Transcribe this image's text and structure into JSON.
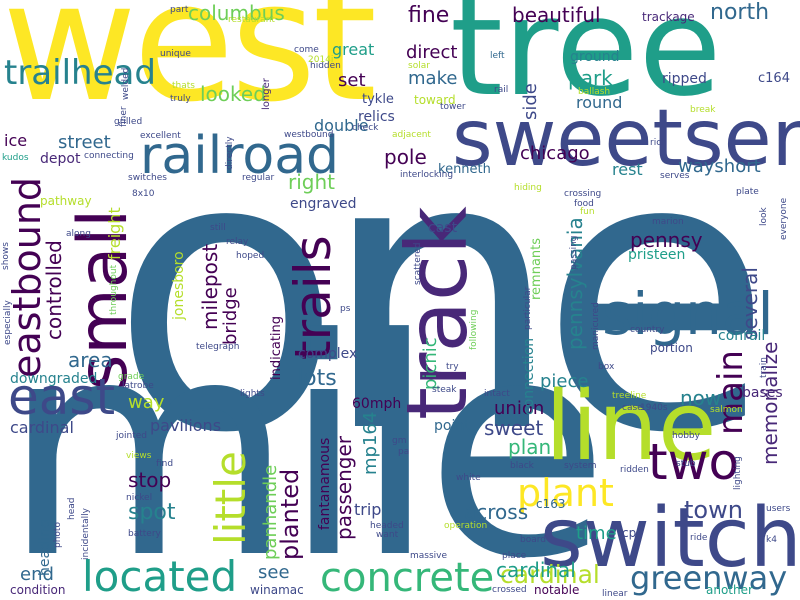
{
  "palette": [
    "#440154",
    "#482878",
    "#3e4989",
    "#31688e",
    "#26828e",
    "#1f9e89",
    "#35b779",
    "#6ece58",
    "#b5de2b",
    "#fde725"
  ],
  "words": [
    {
      "text": "one",
      "color": "#31688e"
    },
    {
      "text": "west",
      "color": "#fde725"
    },
    {
      "text": "mile",
      "color": "#31688e"
    },
    {
      "text": "tree",
      "color": "#1f9e89"
    },
    {
      "text": "line",
      "color": "#b5de2b"
    },
    {
      "text": "track",
      "color": "#482878"
    },
    {
      "text": "switch",
      "color": "#3e4989"
    },
    {
      "text": "sweetser",
      "color": "#3e4989"
    },
    {
      "text": "small",
      "color": "#440154"
    },
    {
      "text": "railroad",
      "color": "#31688e"
    },
    {
      "text": "signal",
      "color": "#31688e"
    },
    {
      "text": "east",
      "color": "#3e4989"
    },
    {
      "text": "eastbound",
      "color": "#440154"
    },
    {
      "text": "located",
      "color": "#1f9e89"
    },
    {
      "text": "concrete",
      "color": "#35b779"
    },
    {
      "text": "trails",
      "color": "#440154"
    },
    {
      "text": "little",
      "color": "#b5de2b"
    },
    {
      "text": "two",
      "color": "#440154"
    },
    {
      "text": "plant",
      "color": "#fde725"
    },
    {
      "text": "main",
      "color": "#440154"
    },
    {
      "text": "greenway",
      "color": "#31688e"
    },
    {
      "text": "cardinal",
      "color": "#b5de2b"
    },
    {
      "text": "town",
      "color": "#3e4989"
    },
    {
      "text": "trailhead",
      "color": "#26828e"
    },
    {
      "text": "columbus",
      "color": "#6ece58"
    },
    {
      "text": "beautiful",
      "color": "#440154"
    },
    {
      "text": "north",
      "color": "#31688e"
    },
    {
      "text": "fine",
      "color": "#440154"
    },
    {
      "text": "double",
      "color": "#31688e"
    },
    {
      "text": "looked",
      "color": "#6ece58"
    },
    {
      "text": "great",
      "color": "#1f9e89"
    },
    {
      "text": "set",
      "color": "#440154"
    },
    {
      "text": "make",
      "color": "#31688e"
    },
    {
      "text": "direct",
      "color": "#440154"
    },
    {
      "text": "side",
      "color": "#3e4989"
    },
    {
      "text": "park",
      "color": "#1f9e89"
    },
    {
      "text": "round",
      "color": "#31688e"
    },
    {
      "text": "ripped",
      "color": "#3e4989"
    },
    {
      "text": "ground",
      "color": "#26828e"
    },
    {
      "text": "trackage",
      "color": "#482878"
    },
    {
      "text": "c164",
      "color": "#3e4989"
    },
    {
      "text": "relics",
      "color": "#3e4989"
    },
    {
      "text": "tykle",
      "color": "#3e4989"
    },
    {
      "text": "pole",
      "color": "#440154"
    },
    {
      "text": "toward",
      "color": "#b5de2b"
    },
    {
      "text": "street",
      "color": "#31688e"
    },
    {
      "text": "ice",
      "color": "#440154"
    },
    {
      "text": "depot",
      "color": "#482878"
    },
    {
      "text": "right",
      "color": "#6ece58"
    },
    {
      "text": "chicago",
      "color": "#440154"
    },
    {
      "text": "rest",
      "color": "#26828e"
    },
    {
      "text": "wayshort",
      "color": "#31688e"
    },
    {
      "text": "kenneth",
      "color": "#31688e"
    },
    {
      "text": "controlled",
      "color": "#440154"
    },
    {
      "text": "freight",
      "color": "#b5de2b"
    },
    {
      "text": "pathway",
      "color": "#b5de2b"
    },
    {
      "text": "engraved",
      "color": "#3e4989"
    },
    {
      "text": "pennsy",
      "color": "#440154"
    },
    {
      "text": "pennsylvania",
      "color": "#26828e"
    },
    {
      "text": "milepost",
      "color": "#440154"
    },
    {
      "text": "bridge",
      "color": "#440154"
    },
    {
      "text": "several",
      "color": "#3e4989"
    },
    {
      "text": "pristeen",
      "color": "#1f9e89"
    },
    {
      "text": "area",
      "color": "#31688e"
    },
    {
      "text": "conrail",
      "color": "#26828e"
    },
    {
      "text": "lots",
      "color": "#31688e"
    },
    {
      "text": "memorialize",
      "color": "#482878"
    },
    {
      "text": "picnic",
      "color": "#35b779"
    },
    {
      "text": "way",
      "color": "#b5de2b"
    },
    {
      "text": "piece",
      "color": "#26828e"
    },
    {
      "text": "union",
      "color": "#440154"
    },
    {
      "text": "now",
      "color": "#26828e"
    },
    {
      "text": "bases",
      "color": "#482878"
    },
    {
      "text": "60mph",
      "color": "#440154"
    },
    {
      "text": "downgraded",
      "color": "#26828e"
    },
    {
      "text": "pavilions",
      "color": "#3e4989"
    },
    {
      "text": "cardinal",
      "color": "#3e4989"
    },
    {
      "text": "sweet",
      "color": "#3e4989"
    },
    {
      "text": "plan",
      "color": "#35b779"
    },
    {
      "text": "panhandle",
      "color": "#6ece58"
    },
    {
      "text": "planted",
      "color": "#440154"
    },
    {
      "text": "passenger",
      "color": "#440154"
    },
    {
      "text": "mp164",
      "color": "#26828e"
    },
    {
      "text": "fantanamous",
      "color": "#440154"
    },
    {
      "text": "stop",
      "color": "#440154"
    },
    {
      "text": "spot",
      "color": "#26828e"
    },
    {
      "text": "time",
      "color": "#1f9e89"
    },
    {
      "text": "across",
      "color": "#31688e"
    },
    {
      "text": "cardinal",
      "color": "#1f9e89"
    },
    {
      "text": "see",
      "color": "#31688e"
    },
    {
      "text": "end",
      "color": "#31688e"
    },
    {
      "text": "heading",
      "color": "#31688e"
    },
    {
      "text": "trip",
      "color": "#3e4989"
    },
    {
      "text": "cast",
      "color": "#3e4989"
    },
    {
      "text": "complex",
      "color": "#3e4989"
    },
    {
      "text": "jonesboro",
      "color": "#b5de2b"
    },
    {
      "text": "connection",
      "color": "#26828e"
    },
    {
      "text": "remnants",
      "color": "#6ece58"
    },
    {
      "text": "indicating",
      "color": "#440154"
    },
    {
      "text": "point",
      "color": "#31688e"
    },
    {
      "text": "condition",
      "color": "#482878"
    },
    {
      "text": "winamac",
      "color": "#3e4989"
    },
    {
      "text": "notable",
      "color": "#440154"
    },
    {
      "text": "another",
      "color": "#1f9e89"
    },
    {
      "text": "portion",
      "color": "#3e4989"
    },
    {
      "text": "cp",
      "color": "#3e4989"
    },
    {
      "text": "c163",
      "color": "#31688e"
    },
    {
      "text": "restaurant",
      "color": "#b5de2b"
    },
    {
      "text": "unique",
      "color": "#3e4989"
    },
    {
      "text": "longer",
      "color": "#482878"
    },
    {
      "text": "welded",
      "color": "#3e4989"
    },
    {
      "text": "hidden",
      "color": "#3e4989"
    },
    {
      "text": "come",
      "color": "#3e4989"
    },
    {
      "text": "left",
      "color": "#31688e"
    },
    {
      "text": "rail",
      "color": "#3e4989"
    },
    {
      "text": "ballash",
      "color": "#b5de2b"
    },
    {
      "text": "solar",
      "color": "#b5de2b"
    },
    {
      "text": "truly",
      "color": "#3e4989"
    },
    {
      "text": "finer",
      "color": "#3e4989"
    },
    {
      "text": "grilled",
      "color": "#3e4989"
    },
    {
      "text": "excellent",
      "color": "#3e4989"
    },
    {
      "text": "westbound",
      "color": "#3e4989"
    },
    {
      "text": "adjacent",
      "color": "#b5de2b"
    },
    {
      "text": "check",
      "color": "#3e4989"
    },
    {
      "text": "tower",
      "color": "#3e4989"
    },
    {
      "text": "rich",
      "color": "#3e4989"
    },
    {
      "text": "break",
      "color": "#b5de2b"
    },
    {
      "text": "connecting",
      "color": "#3e4989"
    },
    {
      "text": "kudos",
      "color": "#1f9e89"
    },
    {
      "text": "switches",
      "color": "#3e4989"
    },
    {
      "text": "8x10",
      "color": "#3e4989"
    },
    {
      "text": "regular",
      "color": "#3e4989"
    },
    {
      "text": "interlocking",
      "color": "#3e4989"
    },
    {
      "text": "hiding",
      "color": "#b5de2b"
    },
    {
      "text": "crossing",
      "color": "#3e4989"
    },
    {
      "text": "food",
      "color": "#3e4989"
    },
    {
      "text": "fun",
      "color": "#b5de2b"
    },
    {
      "text": "serves",
      "color": "#3e4989"
    },
    {
      "text": "plate",
      "color": "#3e4989"
    },
    {
      "text": "marion",
      "color": "#3e4989"
    },
    {
      "text": "look",
      "color": "#3e4989"
    },
    {
      "text": "everyone",
      "color": "#3e4989"
    },
    {
      "text": "along",
      "color": "#3e4989"
    },
    {
      "text": "still",
      "color": "#3e4989"
    },
    {
      "text": "relay",
      "color": "#3e4989"
    },
    {
      "text": "hoped",
      "color": "#3e4989"
    },
    {
      "text": "scattered",
      "color": "#3e4989"
    },
    {
      "text": "particular",
      "color": "#3e4989"
    },
    {
      "text": "passing",
      "color": "#3e4989"
    },
    {
      "text": "throughout",
      "color": "#6ece58"
    },
    {
      "text": "shows",
      "color": "#3e4989"
    },
    {
      "text": "especially",
      "color": "#3e4989"
    },
    {
      "text": "ps",
      "color": "#3e4989"
    },
    {
      "text": "following",
      "color": "#6ece58"
    },
    {
      "text": "country",
      "color": "#3e4989"
    },
    {
      "text": "manicured",
      "color": "#3e4989"
    },
    {
      "text": "telegraph",
      "color": "#3e4989"
    },
    {
      "text": "try",
      "color": "#3e4989"
    },
    {
      "text": "box",
      "color": "#3e4989"
    },
    {
      "text": "grade",
      "color": "#6ece58"
    },
    {
      "text": "latrobe",
      "color": "#3e4989"
    },
    {
      "text": "lights",
      "color": "#3e4989"
    },
    {
      "text": "treeline",
      "color": "#b5de2b"
    },
    {
      "text": "steak",
      "color": "#3e4989"
    },
    {
      "text": "intact",
      "color": "#3e4989"
    },
    {
      "text": "train",
      "color": "#3e4989"
    },
    {
      "text": "case",
      "color": "#3e4989"
    },
    {
      "text": "1940s",
      "color": "#3e4989"
    },
    {
      "text": "salmon",
      "color": "#b5de2b"
    },
    {
      "text": "jointed",
      "color": "#3e4989"
    },
    {
      "text": "gm",
      "color": "#3e4989"
    },
    {
      "text": "pa",
      "color": "#3e4989"
    },
    {
      "text": "hobby",
      "color": "#3e4989"
    },
    {
      "text": "views",
      "color": "#b5de2b"
    },
    {
      "text": "find",
      "color": "#3e4989"
    },
    {
      "text": "black",
      "color": "#3e4989"
    },
    {
      "text": "system",
      "color": "#3e4989"
    },
    {
      "text": "stub",
      "color": "#3e4989"
    },
    {
      "text": "lighting",
      "color": "#3e4989"
    },
    {
      "text": "white",
      "color": "#3e4989"
    },
    {
      "text": "ridden",
      "color": "#3e4989"
    },
    {
      "text": "users",
      "color": "#3e4989"
    },
    {
      "text": "nickel",
      "color": "#3e4989"
    },
    {
      "text": "head",
      "color": "#3e4989"
    },
    {
      "text": "incidentally",
      "color": "#3e4989"
    },
    {
      "text": "photo",
      "color": "#3e4989"
    },
    {
      "text": "battery",
      "color": "#3e4989"
    },
    {
      "text": "headed",
      "color": "#3e4989"
    },
    {
      "text": "want",
      "color": "#3e4989"
    },
    {
      "text": "operation",
      "color": "#b5de2b"
    },
    {
      "text": "board",
      "color": "#3e4989"
    },
    {
      "text": "ride",
      "color": "#3e4989"
    },
    {
      "text": "k4",
      "color": "#3e4989"
    },
    {
      "text": "place",
      "color": "#3e4989"
    },
    {
      "text": "massive",
      "color": "#3e4989"
    },
    {
      "text": "crossed",
      "color": "#3e4989"
    },
    {
      "text": "linear",
      "color": "#3e4989"
    },
    {
      "text": "part",
      "color": "#3e4989"
    },
    {
      "text": "thats",
      "color": "#b5de2b"
    },
    {
      "text": "directly",
      "color": "#3e4989"
    },
    {
      "text": "2014i",
      "color": "#b5de2b"
    }
  ]
}
